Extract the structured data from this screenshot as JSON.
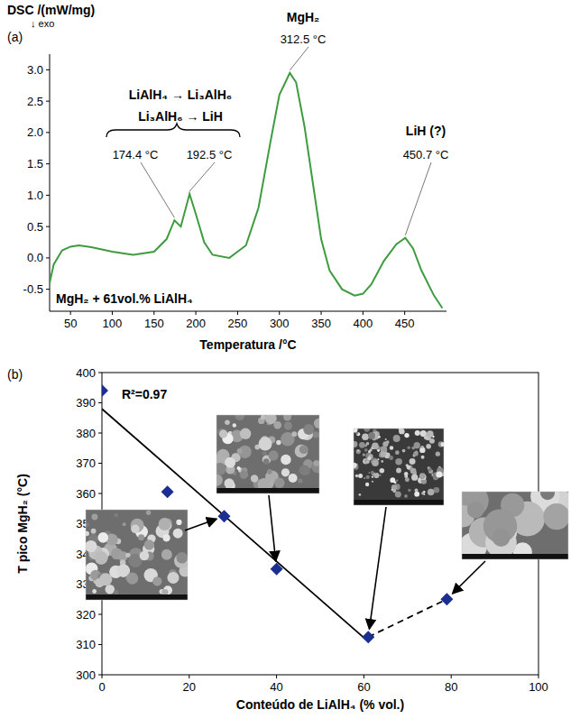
{
  "chart_data": [
    {
      "type": "line",
      "panel": "(a)",
      "ylabel": "DSC /(mW/mg)",
      "subtitle": "↓ exo",
      "xlabel": "Temperatura /°C",
      "xlim": [
        25,
        500
      ],
      "xticks": [
        50,
        100,
        150,
        200,
        250,
        300,
        350,
        400,
        450
      ],
      "ylim": [
        -0.85,
        3.25
      ],
      "yticks": [
        {
          "value": -0.5,
          "label": "-0.5"
        },
        {
          "value": 0,
          "label": "0.0"
        },
        0.5,
        {
          "value": 1,
          "label": "1.0"
        },
        1.5,
        {
          "value": 2,
          "label": "2.0"
        },
        2.5,
        {
          "value": 3,
          "label": "3.0"
        }
      ],
      "grid": false,
      "series": [
        {
          "color": "#3f9b3f",
          "line_style": "solid",
          "x": [
            25,
            30,
            40,
            50,
            60,
            75,
            100,
            125,
            150,
            165,
            174.4,
            182,
            192.5,
            200,
            210,
            220,
            240,
            260,
            275,
            290,
            300,
            312.5,
            320,
            330,
            340,
            350,
            360,
            375,
            390,
            400,
            410,
            425,
            440,
            450.7,
            460,
            470,
            485,
            495
          ],
          "values": [
            -0.4,
            -0.1,
            0.12,
            0.18,
            0.2,
            0.17,
            0.1,
            0.05,
            0.1,
            0.3,
            0.6,
            0.5,
            1.02,
            0.7,
            0.25,
            0.05,
            0.0,
            0.2,
            0.8,
            1.9,
            2.6,
            2.95,
            2.8,
            2.1,
            1.2,
            0.3,
            -0.2,
            -0.5,
            -0.6,
            -0.57,
            -0.42,
            -0.05,
            0.22,
            0.32,
            0.15,
            -0.2,
            -0.6,
            -0.8
          ]
        }
      ],
      "annotations": [
        {
          "text": "LiAlH₄ → Li₃AlH₆"
        },
        {
          "text": "Li₃AlH₆ → LiH"
        },
        {
          "text": "174.4 °C",
          "x": 174.4
        },
        {
          "text": "192.5 °C",
          "x": 192.5
        },
        {
          "text": "MgH₂"
        },
        {
          "text": "312.5 °C",
          "x": 312.5
        },
        {
          "text": "LiH (?)"
        },
        {
          "text": "450.7 °C",
          "x": 450.7
        },
        {
          "text": "MgH₂ + 61vol.% LiAlH₄"
        }
      ]
    },
    {
      "type": "scatter",
      "panel": "(b)",
      "xlabel": "Conteúdo de LiAlH₄ (% vol.)",
      "ylabel": "T pico MgH₂ (°C)",
      "xlim": [
        0,
        100
      ],
      "xticks": [
        0,
        20,
        40,
        60,
        80,
        100
      ],
      "ylim": [
        300,
        400
      ],
      "yticks": [
        300,
        310,
        320,
        330,
        340,
        350,
        360,
        370,
        380,
        390,
        400
      ],
      "grid": false,
      "series": [
        {
          "type": "scatter",
          "marker": "diamond",
          "color": "#1a2f8f",
          "x": [
            0,
            15,
            28,
            40,
            61,
            79
          ],
          "values": [
            394,
            360.5,
            352.5,
            335,
            312.5,
            325
          ]
        },
        {
          "type": "line",
          "line_style": "solid",
          "color": "#000000",
          "x": [
            0,
            61
          ],
          "values": [
            388,
            311
          ]
        },
        {
          "type": "line",
          "line_style": "dashed",
          "color": "#000000",
          "x": [
            61,
            79
          ],
          "values": [
            312.5,
            325
          ]
        }
      ],
      "annotations": [
        {
          "text": "R²=0.97"
        }
      ]
    }
  ]
}
